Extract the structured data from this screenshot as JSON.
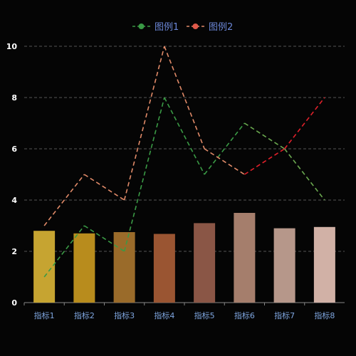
{
  "chart_data": {
    "type": "bar+line",
    "categories": [
      "指标1",
      "指标2",
      "指标3",
      "指标4",
      "指标5",
      "指标6",
      "指标7",
      "指标8"
    ],
    "bars": {
      "values": [
        2.8,
        2.7,
        2.75,
        2.68,
        3.1,
        3.5,
        2.9,
        2.95
      ],
      "colors": [
        "#c6a431",
        "#b88c1d",
        "#9a6b2a",
        "#9a5532",
        "#8a5646",
        "#a57e6c",
        "#b6978a",
        "#d1b1a6"
      ]
    },
    "series": [
      {
        "name": "图例1",
        "values": [
          1,
          3,
          2,
          8,
          5,
          7,
          6,
          4
        ],
        "color": "#3a9a45",
        "accent": "#8bc85a"
      },
      {
        "name": "图例2",
        "values": [
          3,
          5,
          4,
          10,
          6,
          5,
          6,
          8
        ],
        "color": "#e08a68",
        "accent": "#e0202a"
      }
    ],
    "yticks": [
      0,
      2,
      4,
      6,
      8,
      10
    ],
    "ylim": [
      0,
      10
    ],
    "grid": true,
    "legend": "top-center",
    "colors": {
      "background": "#050505",
      "grid": "#555555",
      "xlabel": "#7fa6e0",
      "ylabel": "#ffffff",
      "legend_text": "#6b86d6"
    }
  }
}
